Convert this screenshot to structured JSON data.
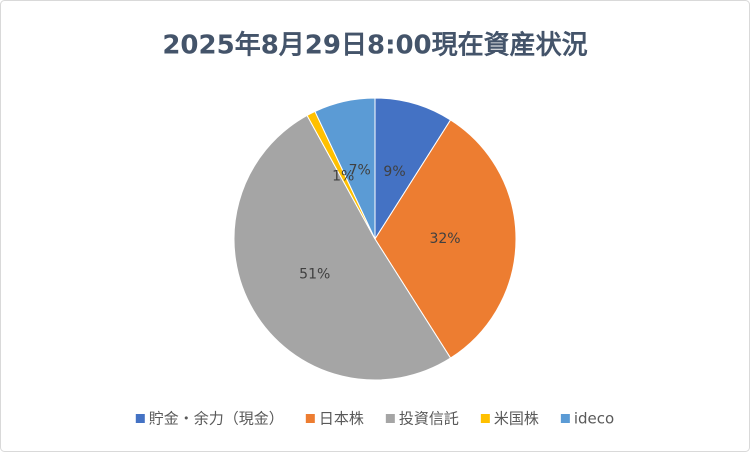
{
  "chart_data": {
    "type": "pie",
    "title": "2025年8月29日8:00現在資産状況",
    "categories": [
      "貯金・余力（現金）",
      "日本株",
      "投資信託",
      "米国株",
      "ideco"
    ],
    "values": [
      9,
      32,
      51,
      1,
      7
    ],
    "value_labels": [
      "9%",
      "32%",
      "51%",
      "1%",
      "7%"
    ],
    "colors": [
      "#4472c4",
      "#ed7d31",
      "#a5a5a5",
      "#ffc000",
      "#5b9bd5"
    ],
    "legend": "bottom"
  }
}
